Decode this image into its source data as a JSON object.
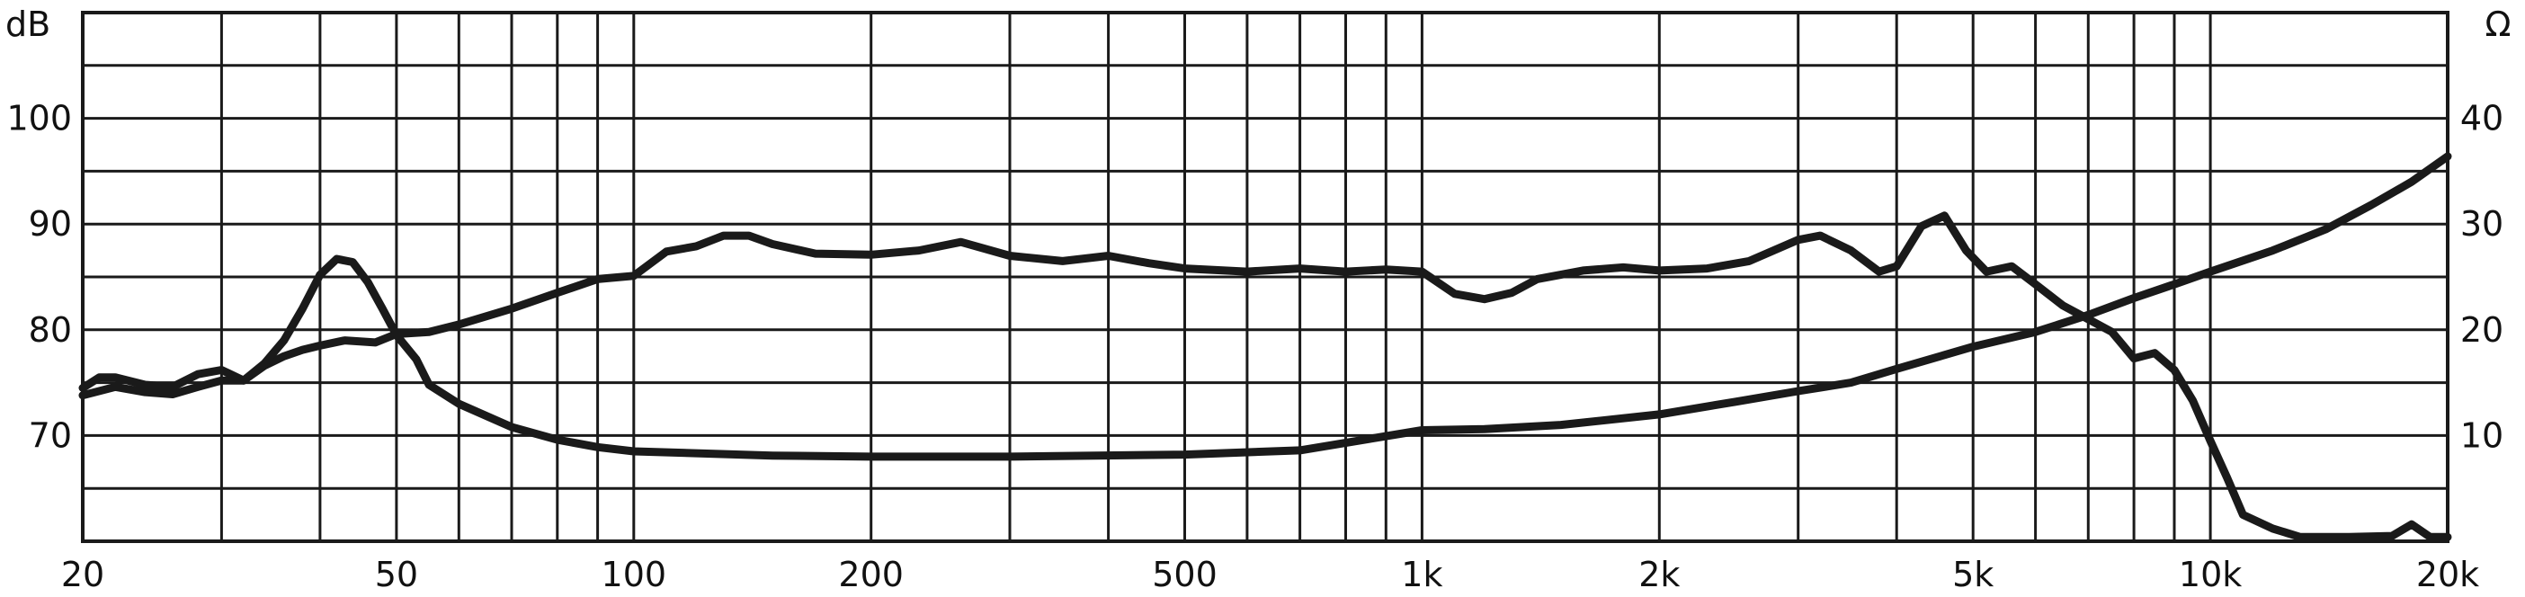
{
  "chart_data": {
    "type": "line",
    "x_scale": "log",
    "grid": true,
    "x_range": [
      20,
      20000
    ],
    "y_left_range": [
      60,
      110
    ],
    "y_right_range": [
      0,
      50
    ],
    "y_left_unit": "dB",
    "y_right_unit": "Ω",
    "x_ticks": [
      {
        "value": 20,
        "label": "20"
      },
      {
        "value": 50,
        "label": "50"
      },
      {
        "value": 100,
        "label": "100"
      },
      {
        "value": 200,
        "label": "200"
      },
      {
        "value": 500,
        "label": "500"
      },
      {
        "value": 1000,
        "label": "1k"
      },
      {
        "value": 2000,
        "label": "2k"
      },
      {
        "value": 5000,
        "label": "5k"
      },
      {
        "value": 10000,
        "label": "10k"
      },
      {
        "value": 20000,
        "label": "20k"
      }
    ],
    "x_gridlines": [
      20,
      30,
      40,
      50,
      60,
      70,
      80,
      90,
      100,
      200,
      300,
      400,
      500,
      600,
      700,
      800,
      900,
      1000,
      2000,
      3000,
      4000,
      5000,
      6000,
      7000,
      8000,
      9000,
      10000,
      20000
    ],
    "y_left_ticks": [
      {
        "value": 70,
        "label": "70"
      },
      {
        "value": 80,
        "label": "80"
      },
      {
        "value": 90,
        "label": "90"
      },
      {
        "value": 100,
        "label": "100"
      }
    ],
    "y_right_ticks": [
      {
        "value": 10,
        "label": "10"
      },
      {
        "value": 20,
        "label": "20"
      },
      {
        "value": 30,
        "label": "30"
      },
      {
        "value": 40,
        "label": "40"
      }
    ],
    "series": [
      {
        "axis": "left",
        "color": "#1a1a1a",
        "points": [
          [
            20,
            74.5
          ],
          [
            21,
            75.5
          ],
          [
            22,
            75.5
          ],
          [
            24,
            74.8
          ],
          [
            26,
            74.6
          ],
          [
            28,
            75.8
          ],
          [
            30,
            76.2
          ],
          [
            32,
            75.2
          ],
          [
            34,
            76.6
          ],
          [
            36,
            77.5
          ],
          [
            38,
            78.1
          ],
          [
            40,
            78.5
          ],
          [
            43,
            79.0
          ],
          [
            47,
            78.8
          ],
          [
            50,
            79.6
          ],
          [
            55,
            79.8
          ],
          [
            60,
            80.5
          ],
          [
            70,
            82.0
          ],
          [
            80,
            83.5
          ],
          [
            90,
            84.8
          ],
          [
            100,
            85.1
          ],
          [
            110,
            87.4
          ],
          [
            120,
            87.9
          ],
          [
            130,
            88.9
          ],
          [
            140,
            88.9
          ],
          [
            150,
            88.1
          ],
          [
            170,
            87.2
          ],
          [
            200,
            87.1
          ],
          [
            230,
            87.5
          ],
          [
            260,
            88.3
          ],
          [
            300,
            87.0
          ],
          [
            350,
            86.5
          ],
          [
            400,
            87.0
          ],
          [
            450,
            86.3
          ],
          [
            500,
            85.8
          ],
          [
            600,
            85.5
          ],
          [
            700,
            85.8
          ],
          [
            800,
            85.5
          ],
          [
            900,
            85.7
          ],
          [
            1000,
            85.5
          ],
          [
            1100,
            83.4
          ],
          [
            1200,
            82.9
          ],
          [
            1300,
            83.5
          ],
          [
            1400,
            84.8
          ],
          [
            1600,
            85.6
          ],
          [
            1800,
            85.9
          ],
          [
            2000,
            85.6
          ],
          [
            2300,
            85.8
          ],
          [
            2600,
            86.5
          ],
          [
            3000,
            88.5
          ],
          [
            3200,
            88.9
          ],
          [
            3500,
            87.5
          ],
          [
            3800,
            85.5
          ],
          [
            4000,
            86.0
          ],
          [
            4300,
            89.8
          ],
          [
            4600,
            90.8
          ],
          [
            4900,
            87.5
          ],
          [
            5200,
            85.5
          ],
          [
            5600,
            86.0
          ],
          [
            6000,
            84.3
          ],
          [
            6500,
            82.3
          ],
          [
            7000,
            81.0
          ],
          [
            7500,
            79.8
          ],
          [
            8000,
            77.3
          ],
          [
            8500,
            77.8
          ],
          [
            9000,
            76.2
          ],
          [
            9500,
            73.3
          ],
          [
            10000,
            69.5
          ],
          [
            10500,
            66.0
          ],
          [
            11000,
            62.5
          ],
          [
            12000,
            61.2
          ],
          [
            13000,
            60.4
          ],
          [
            15000,
            60.4
          ],
          [
            17000,
            60.5
          ],
          [
            18000,
            61.6
          ],
          [
            19000,
            60.4
          ],
          [
            20000,
            60.4
          ]
        ]
      },
      {
        "axis": "right",
        "color": "#1a1a1a",
        "points": [
          [
            20,
            13.8
          ],
          [
            22,
            14.6
          ],
          [
            24,
            14.1
          ],
          [
            26,
            13.9
          ],
          [
            28,
            14.6
          ],
          [
            30,
            15.2
          ],
          [
            32,
            15.2
          ],
          [
            34,
            16.8
          ],
          [
            36,
            19.0
          ],
          [
            38,
            22.0
          ],
          [
            40,
            25.2
          ],
          [
            42,
            26.7
          ],
          [
            44,
            26.4
          ],
          [
            46,
            24.5
          ],
          [
            48,
            22.0
          ],
          [
            50,
            19.5
          ],
          [
            53,
            17.2
          ],
          [
            55,
            14.8
          ],
          [
            60,
            13.0
          ],
          [
            70,
            10.8
          ],
          [
            80,
            9.6
          ],
          [
            90,
            8.9
          ],
          [
            100,
            8.5
          ],
          [
            150,
            8.1
          ],
          [
            200,
            8.0
          ],
          [
            300,
            8.0
          ],
          [
            500,
            8.2
          ],
          [
            700,
            8.6
          ],
          [
            1000,
            10.5
          ],
          [
            1200,
            10.6
          ],
          [
            1500,
            11.0
          ],
          [
            2000,
            12.0
          ],
          [
            2500,
            13.2
          ],
          [
            3000,
            14.2
          ],
          [
            3500,
            15.0
          ],
          [
            4000,
            16.3
          ],
          [
            5000,
            18.4
          ],
          [
            6000,
            19.8
          ],
          [
            7000,
            21.4
          ],
          [
            8000,
            23.0
          ],
          [
            9000,
            24.3
          ],
          [
            10000,
            25.5
          ],
          [
            12000,
            27.5
          ],
          [
            14000,
            29.5
          ],
          [
            16000,
            31.8
          ],
          [
            18000,
            34.0
          ],
          [
            20000,
            36.4
          ]
        ]
      }
    ]
  }
}
